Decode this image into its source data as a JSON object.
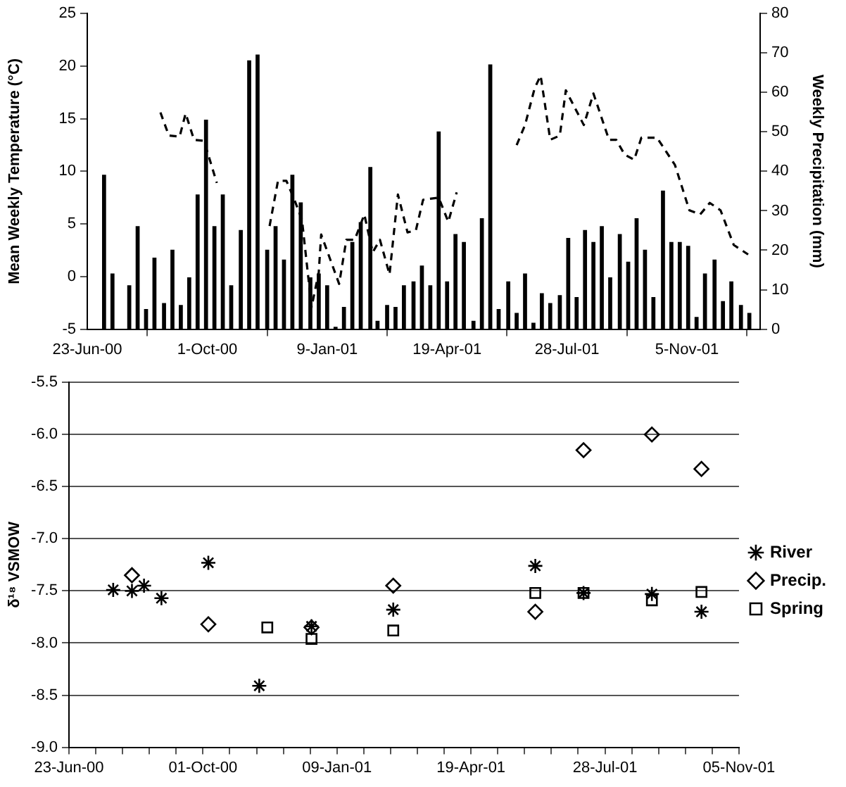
{
  "chart_data": [
    {
      "type": "bar",
      "ylabel": "Mean Weekly Temperature (°C)",
      "y2label": "Weekly Precipitation (mm)",
      "xlim": [
        "2000-06-23",
        "2002-01-05"
      ],
      "xticks": [
        {
          "value": "2000-06-23",
          "label": "23-Jun-00"
        },
        {
          "value": "2000-10-01",
          "label": "1-Oct-00"
        },
        {
          "value": "2001-01-09",
          "label": "9-Jan-01"
        },
        {
          "value": "2001-04-19",
          "label": "19-Apr-01"
        },
        {
          "value": "2001-07-28",
          "label": "28-Jul-01"
        },
        {
          "value": "2001-11-05",
          "label": "5-Nov-01"
        }
      ],
      "ylim": [
        -5,
        25
      ],
      "yticks": [
        -5,
        0,
        5,
        10,
        15,
        20,
        25
      ],
      "y2lim": [
        0,
        80
      ],
      "y2ticks": [
        0,
        10,
        20,
        30,
        40,
        50,
        60,
        70,
        80
      ],
      "grid": false,
      "legend": false,
      "series": [
        {
          "axis": "y2",
          "color": "#000000",
          "x": [
            "2000-07-07",
            "2000-07-14",
            "2000-07-28",
            "2000-08-04",
            "2000-08-11",
            "2000-08-18",
            "2000-08-26",
            "2000-09-02",
            "2000-09-09",
            "2000-09-16",
            "2000-09-23",
            "2000-09-30",
            "2000-10-07",
            "2000-10-14",
            "2000-10-21",
            "2000-10-29",
            "2000-11-05",
            "2000-11-12",
            "2000-11-20",
            "2000-11-27",
            "2000-12-04",
            "2000-12-11",
            "2000-12-18",
            "2000-12-26",
            "2001-01-02",
            "2001-01-09",
            "2001-01-16",
            "2001-01-23",
            "2001-01-30",
            "2001-02-06",
            "2001-02-14",
            "2001-02-20",
            "2001-02-28",
            "2001-03-07",
            "2001-03-14",
            "2001-03-22",
            "2001-03-29",
            "2001-04-05",
            "2001-04-12",
            "2001-04-19",
            "2001-04-26",
            "2001-05-03",
            "2001-05-11",
            "2001-05-18",
            "2001-05-25",
            "2001-06-01",
            "2001-06-09",
            "2001-06-16",
            "2001-06-23",
            "2001-06-30",
            "2001-07-07",
            "2001-07-14",
            "2001-07-22",
            "2001-07-29",
            "2001-08-05",
            "2001-08-12",
            "2001-08-19",
            "2001-08-26",
            "2001-09-02",
            "2001-09-10",
            "2001-09-17",
            "2001-09-24",
            "2001-10-01",
            "2001-10-08",
            "2001-10-16",
            "2001-10-23",
            "2001-10-30",
            "2001-11-06",
            "2001-11-13",
            "2001-11-20",
            "2001-11-28",
            "2001-12-05",
            "2001-12-12",
            "2001-12-20",
            "2001-12-27"
          ],
          "values": [
            39,
            14,
            11,
            26,
            5,
            18,
            6.5,
            20,
            6,
            13,
            34,
            53,
            26,
            34,
            11,
            25,
            68,
            69.5,
            20,
            26,
            17.5,
            39,
            32,
            13,
            14,
            11,
            0.5,
            5.5,
            22,
            27,
            41,
            2,
            6,
            5.5,
            11,
            12,
            16,
            11,
            50,
            12,
            24,
            22,
            2,
            28,
            67,
            5,
            12,
            4,
            14,
            1.5,
            9,
            6.5,
            8.5,
            23,
            8,
            25,
            22,
            26,
            13,
            24,
            17,
            28,
            20,
            8,
            35,
            22,
            22,
            21,
            3,
            14,
            17.5,
            7,
            12,
            6,
            4
          ]
        },
        {
          "type": "line",
          "axis": "y",
          "color": "#000000",
          "line_style": "dashed",
          "marker": "none",
          "x": [
            "2000-08-23",
            "2000-08-30",
            "2000-09-08",
            "2000-09-13",
            "2000-09-20",
            "2000-09-28",
            "2000-10-01",
            "2000-10-09",
            "2000-10-30",
            "2000-11-22",
            "2000-11-29",
            "2000-12-06",
            "2000-12-12",
            "2000-12-19",
            "2000-12-27",
            "2001-01-02",
            "2001-01-04",
            "2001-01-19",
            "2001-01-25",
            "2001-02-01",
            "2001-02-09",
            "2001-02-16",
            "2001-02-22",
            "2001-03-02",
            "2001-03-09",
            "2001-03-17",
            "2001-03-24",
            "2001-03-30",
            "2001-04-12",
            "2001-04-20",
            "2001-04-27",
            "2001-05-20",
            "2001-06-16",
            "2001-06-23",
            "2001-07-01",
            "2001-07-06",
            "2001-07-14",
            "2001-07-22",
            "2001-07-27",
            "2001-08-11",
            "2001-08-19",
            "2001-09-01",
            "2001-09-07",
            "2001-09-14",
            "2001-09-22",
            "2001-09-28",
            "2001-10-11",
            "2001-10-26",
            "2001-11-07",
            "2001-11-16",
            "2001-11-24",
            "2001-12-03",
            "2001-12-14",
            "2001-12-26"
          ],
          "values": [
            15.6,
            13.4,
            13.3,
            15.5,
            13.0,
            12.9,
            11.9,
            8.9,
            null,
            4.8,
            9.1,
            9.1,
            7.5,
            5.4,
            -2.9,
            0.4,
            4.0,
            -0.7,
            3.5,
            3.5,
            5.9,
            2.3,
            3.5,
            0.2,
            7.8,
            4.2,
            4.4,
            7.3,
            7.5,
            5.2,
            8.0,
            null,
            12.5,
            14.4,
            17.9,
            19.1,
            13.0,
            13.4,
            17.7,
            14.4,
            17.4,
            13.0,
            13.0,
            11.6,
            11.1,
            13.2,
            13.2,
            10.6,
            6.3,
            5.9,
            7.0,
            6.3,
            3.0,
            2.1
          ]
        }
      ]
    },
    {
      "type": "scatter",
      "ylabel": "δ¹⁸ VSMOW",
      "xlim": [
        "2000-06-23",
        "2001-11-05"
      ],
      "xticks": [
        {
          "value": "2000-06-23",
          "label": "23-Jun-00"
        },
        {
          "value": "2000-07-13",
          "label": null
        },
        {
          "value": "2000-08-02",
          "label": null
        },
        {
          "value": "2000-08-22",
          "label": null
        },
        {
          "value": "2000-09-11",
          "label": null
        },
        {
          "value": "2000-10-01",
          "label": "01-Oct-00"
        },
        {
          "value": "2000-10-21",
          "label": null
        },
        {
          "value": "2000-11-10",
          "label": null
        },
        {
          "value": "2000-11-30",
          "label": null
        },
        {
          "value": "2000-12-20",
          "label": null
        },
        {
          "value": "2001-01-09",
          "label": "09-Jan-01"
        },
        {
          "value": "2001-01-29",
          "label": null
        },
        {
          "value": "2001-02-18",
          "label": null
        },
        {
          "value": "2001-03-10",
          "label": null
        },
        {
          "value": "2001-03-30",
          "label": null
        },
        {
          "value": "2001-04-19",
          "label": "19-Apr-01"
        },
        {
          "value": "2001-05-09",
          "label": null
        },
        {
          "value": "2001-05-29",
          "label": null
        },
        {
          "value": "2001-06-18",
          "label": null
        },
        {
          "value": "2001-07-08",
          "label": null
        },
        {
          "value": "2001-07-28",
          "label": "28-Jul-01"
        },
        {
          "value": "2001-08-17",
          "label": null
        },
        {
          "value": "2001-09-06",
          "label": null
        },
        {
          "value": "2001-09-26",
          "label": null
        },
        {
          "value": "2001-10-16",
          "label": null
        },
        {
          "value": "2001-11-05",
          "label": "05-Nov-01"
        }
      ],
      "ylim": [
        -9,
        -5.5
      ],
      "yticks": [
        {
          "value": -9,
          "label": "-9.0"
        },
        {
          "value": -8.5,
          "label": "-8.5"
        },
        {
          "value": -8,
          "label": "-8.0"
        },
        {
          "value": -7.5,
          "label": "-7.5"
        },
        {
          "value": -7,
          "label": "-7.0"
        },
        {
          "value": -6.5,
          "label": "-6.5"
        },
        {
          "value": -6,
          "label": "-6.0"
        },
        {
          "value": -5.5,
          "label": "-5.5"
        }
      ],
      "grid": "y",
      "legend": "right",
      "series": [
        {
          "name": "River",
          "color": "#000000",
          "marker": "cross",
          "x": [
            "2000-07-26",
            "2000-08-09",
            "2000-08-18",
            "2000-08-31",
            "2000-10-05",
            "2000-11-12",
            "2000-12-21",
            "2001-02-20",
            "2001-06-06",
            "2001-07-12",
            "2001-09-01",
            "2001-10-08"
          ],
          "values": [
            -7.49,
            -7.5,
            -7.45,
            -7.57,
            -7.23,
            -8.41,
            -7.84,
            -7.68,
            -7.26,
            -7.52,
            -7.53,
            -7.7
          ]
        },
        {
          "name": "Precip.",
          "color": "#000000",
          "marker": "diamond",
          "x": [
            "2000-08-09",
            "2000-10-05",
            "2000-12-21",
            "2001-02-20",
            "2001-06-06",
            "2001-07-12",
            "2001-09-01",
            "2001-10-08"
          ],
          "values": [
            -7.35,
            -7.82,
            -7.85,
            -7.45,
            -7.7,
            -6.15,
            -6.0,
            -6.33
          ]
        },
        {
          "name": "Spring",
          "color": "#000000",
          "marker": "square",
          "x": [
            "2000-11-18",
            "2000-12-21",
            "2001-02-20",
            "2001-06-06",
            "2001-07-12",
            "2001-09-01",
            "2001-10-08"
          ],
          "values": [
            -7.85,
            -7.96,
            -7.88,
            -7.52,
            -7.52,
            -7.59,
            -7.51
          ]
        }
      ]
    }
  ]
}
